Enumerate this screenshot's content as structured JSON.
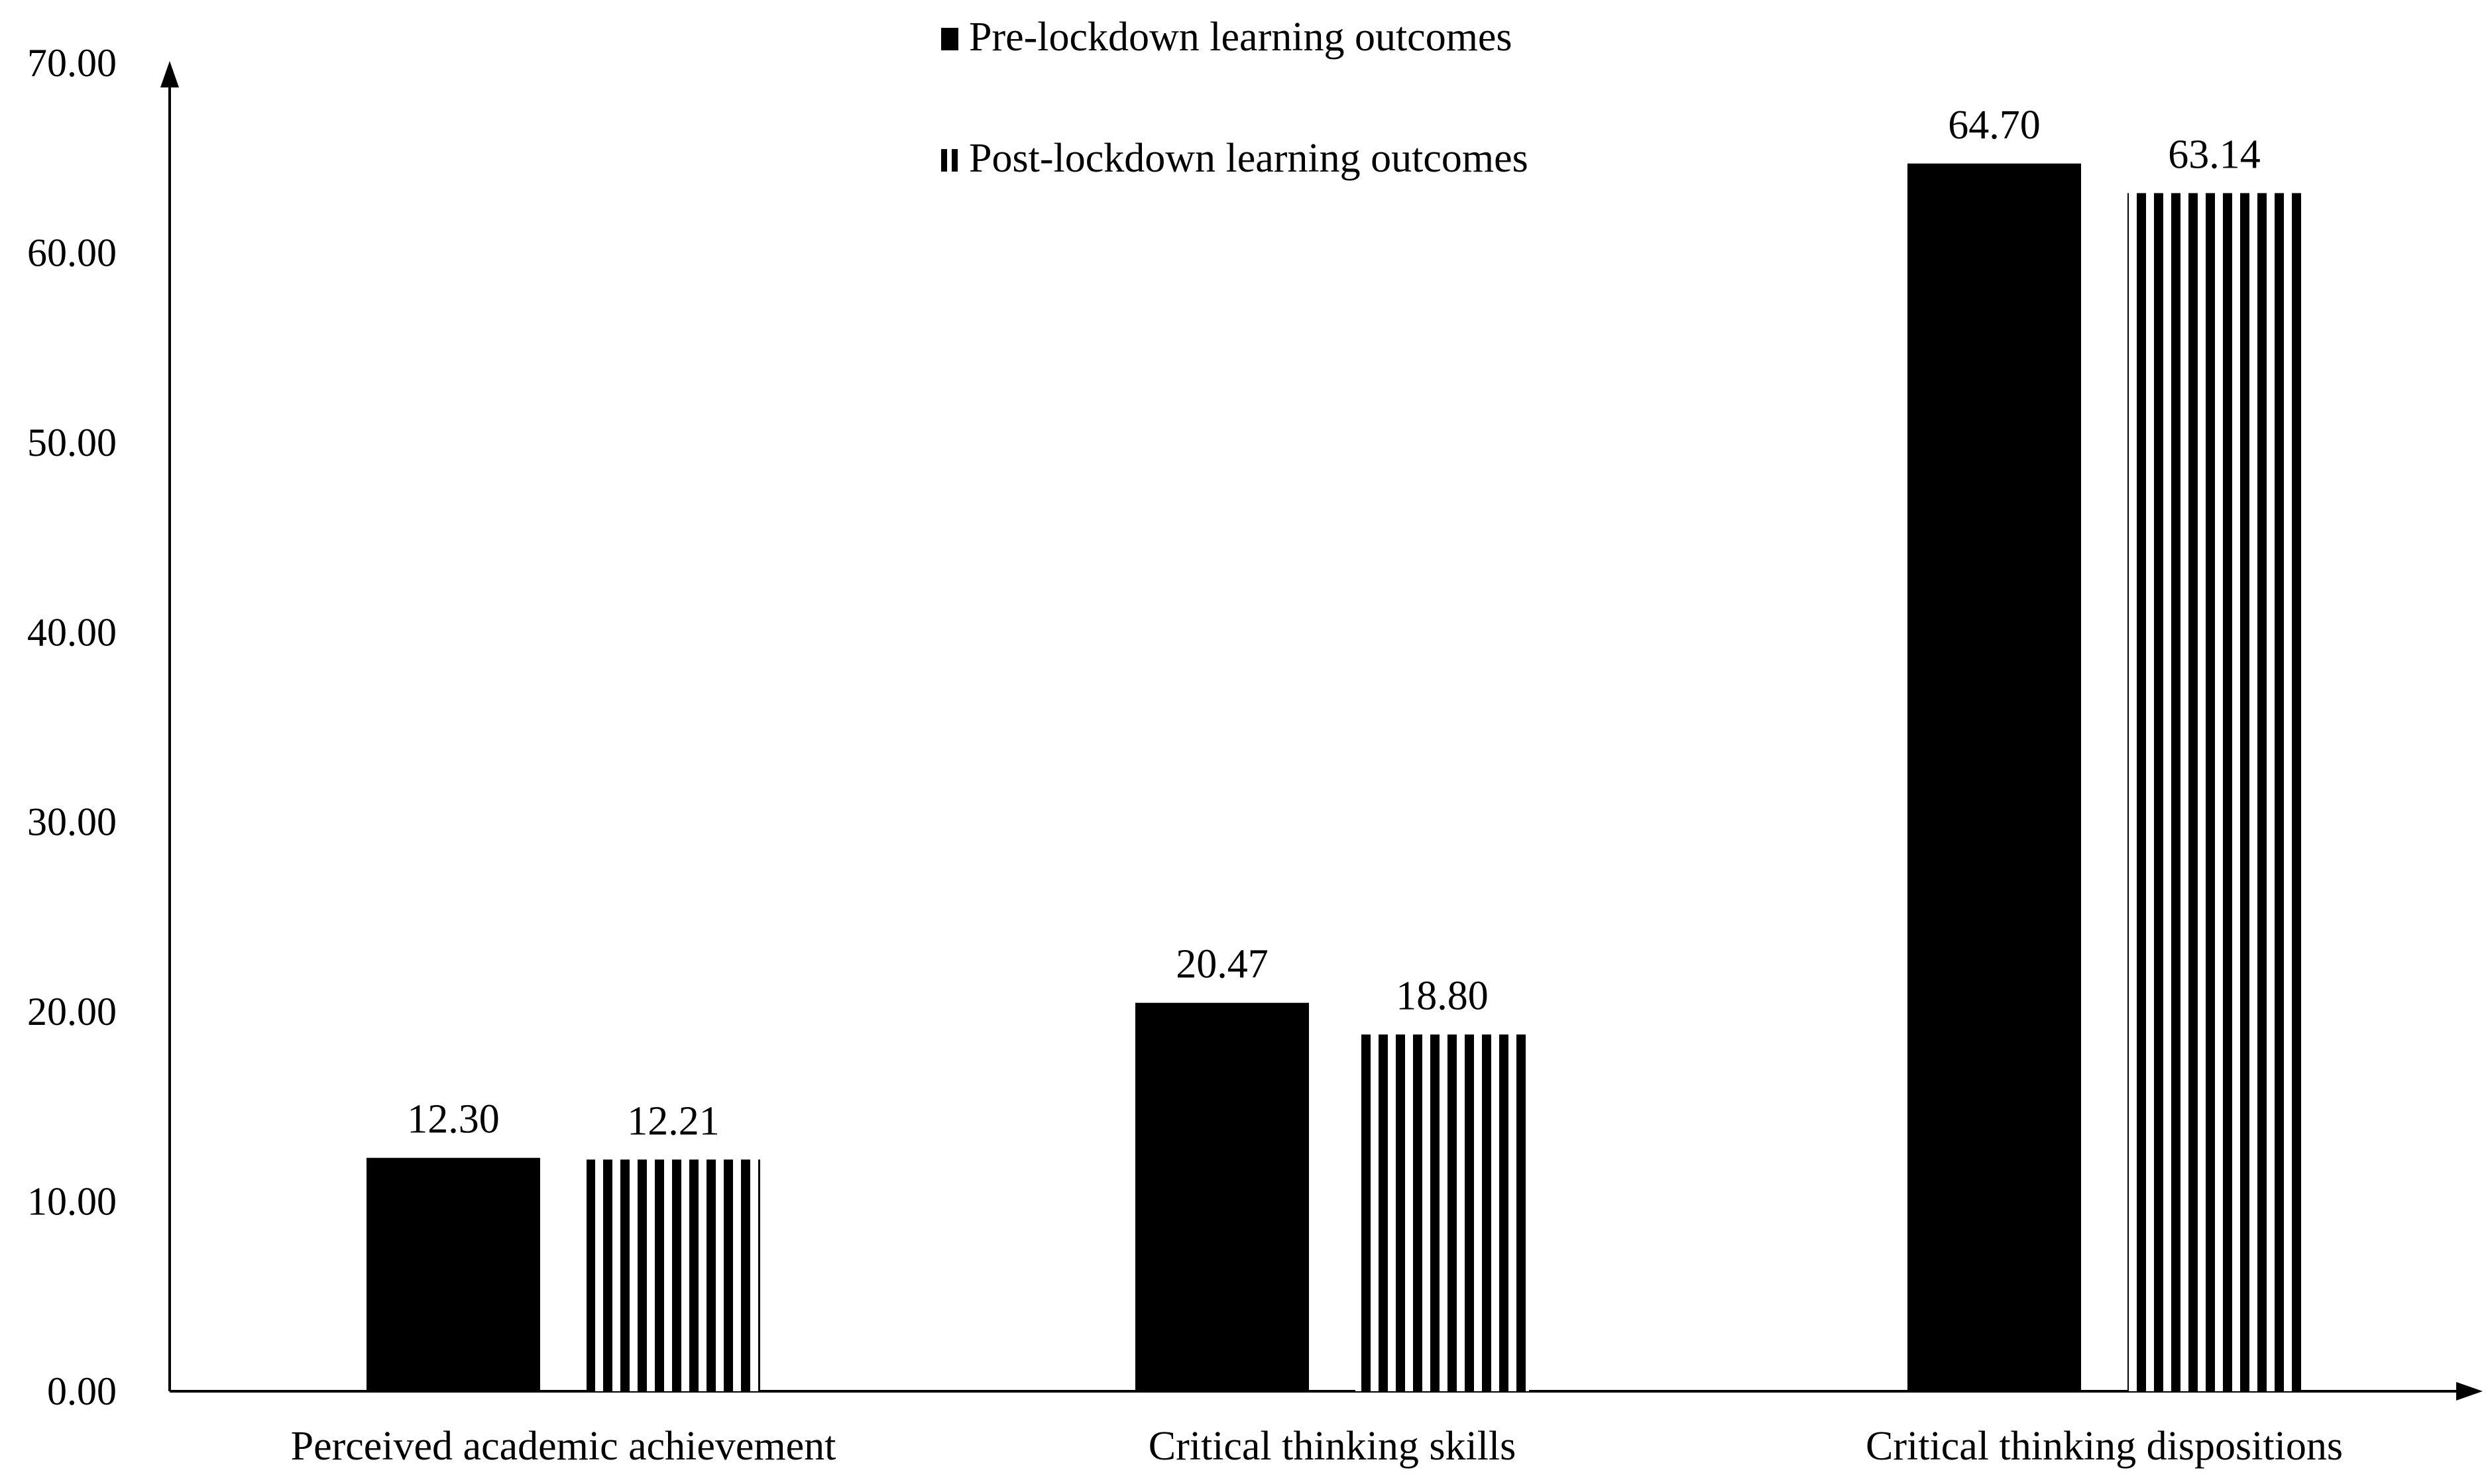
{
  "chart_data": {
    "type": "bar",
    "title": "",
    "xlabel": "",
    "ylabel": "",
    "ylim": [
      0,
      70
    ],
    "y_ticks": [
      "0.00",
      "10.00",
      "20.00",
      "30.00",
      "40.00",
      "50.00",
      "60.00",
      "70.00"
    ],
    "categories": [
      "Perceived academic achievement",
      "Critical thinking skills",
      "Critical thinking dispositions"
    ],
    "series": [
      {
        "name": "Pre-lockdown learning outcomes",
        "values": [
          12.3,
          20.47,
          64.7
        ],
        "labels": [
          "12.30",
          "20.47",
          "64.70"
        ],
        "fill": "solid",
        "color": "#000000"
      },
      {
        "name": "Post-lockdown learning outcomes",
        "values": [
          12.21,
          18.8,
          63.14
        ],
        "labels": [
          "12.21",
          "18.80",
          "63.14"
        ],
        "fill": "vertical-stripes",
        "color": "#000000"
      }
    ],
    "legend_position": "top-center",
    "grid": false
  }
}
